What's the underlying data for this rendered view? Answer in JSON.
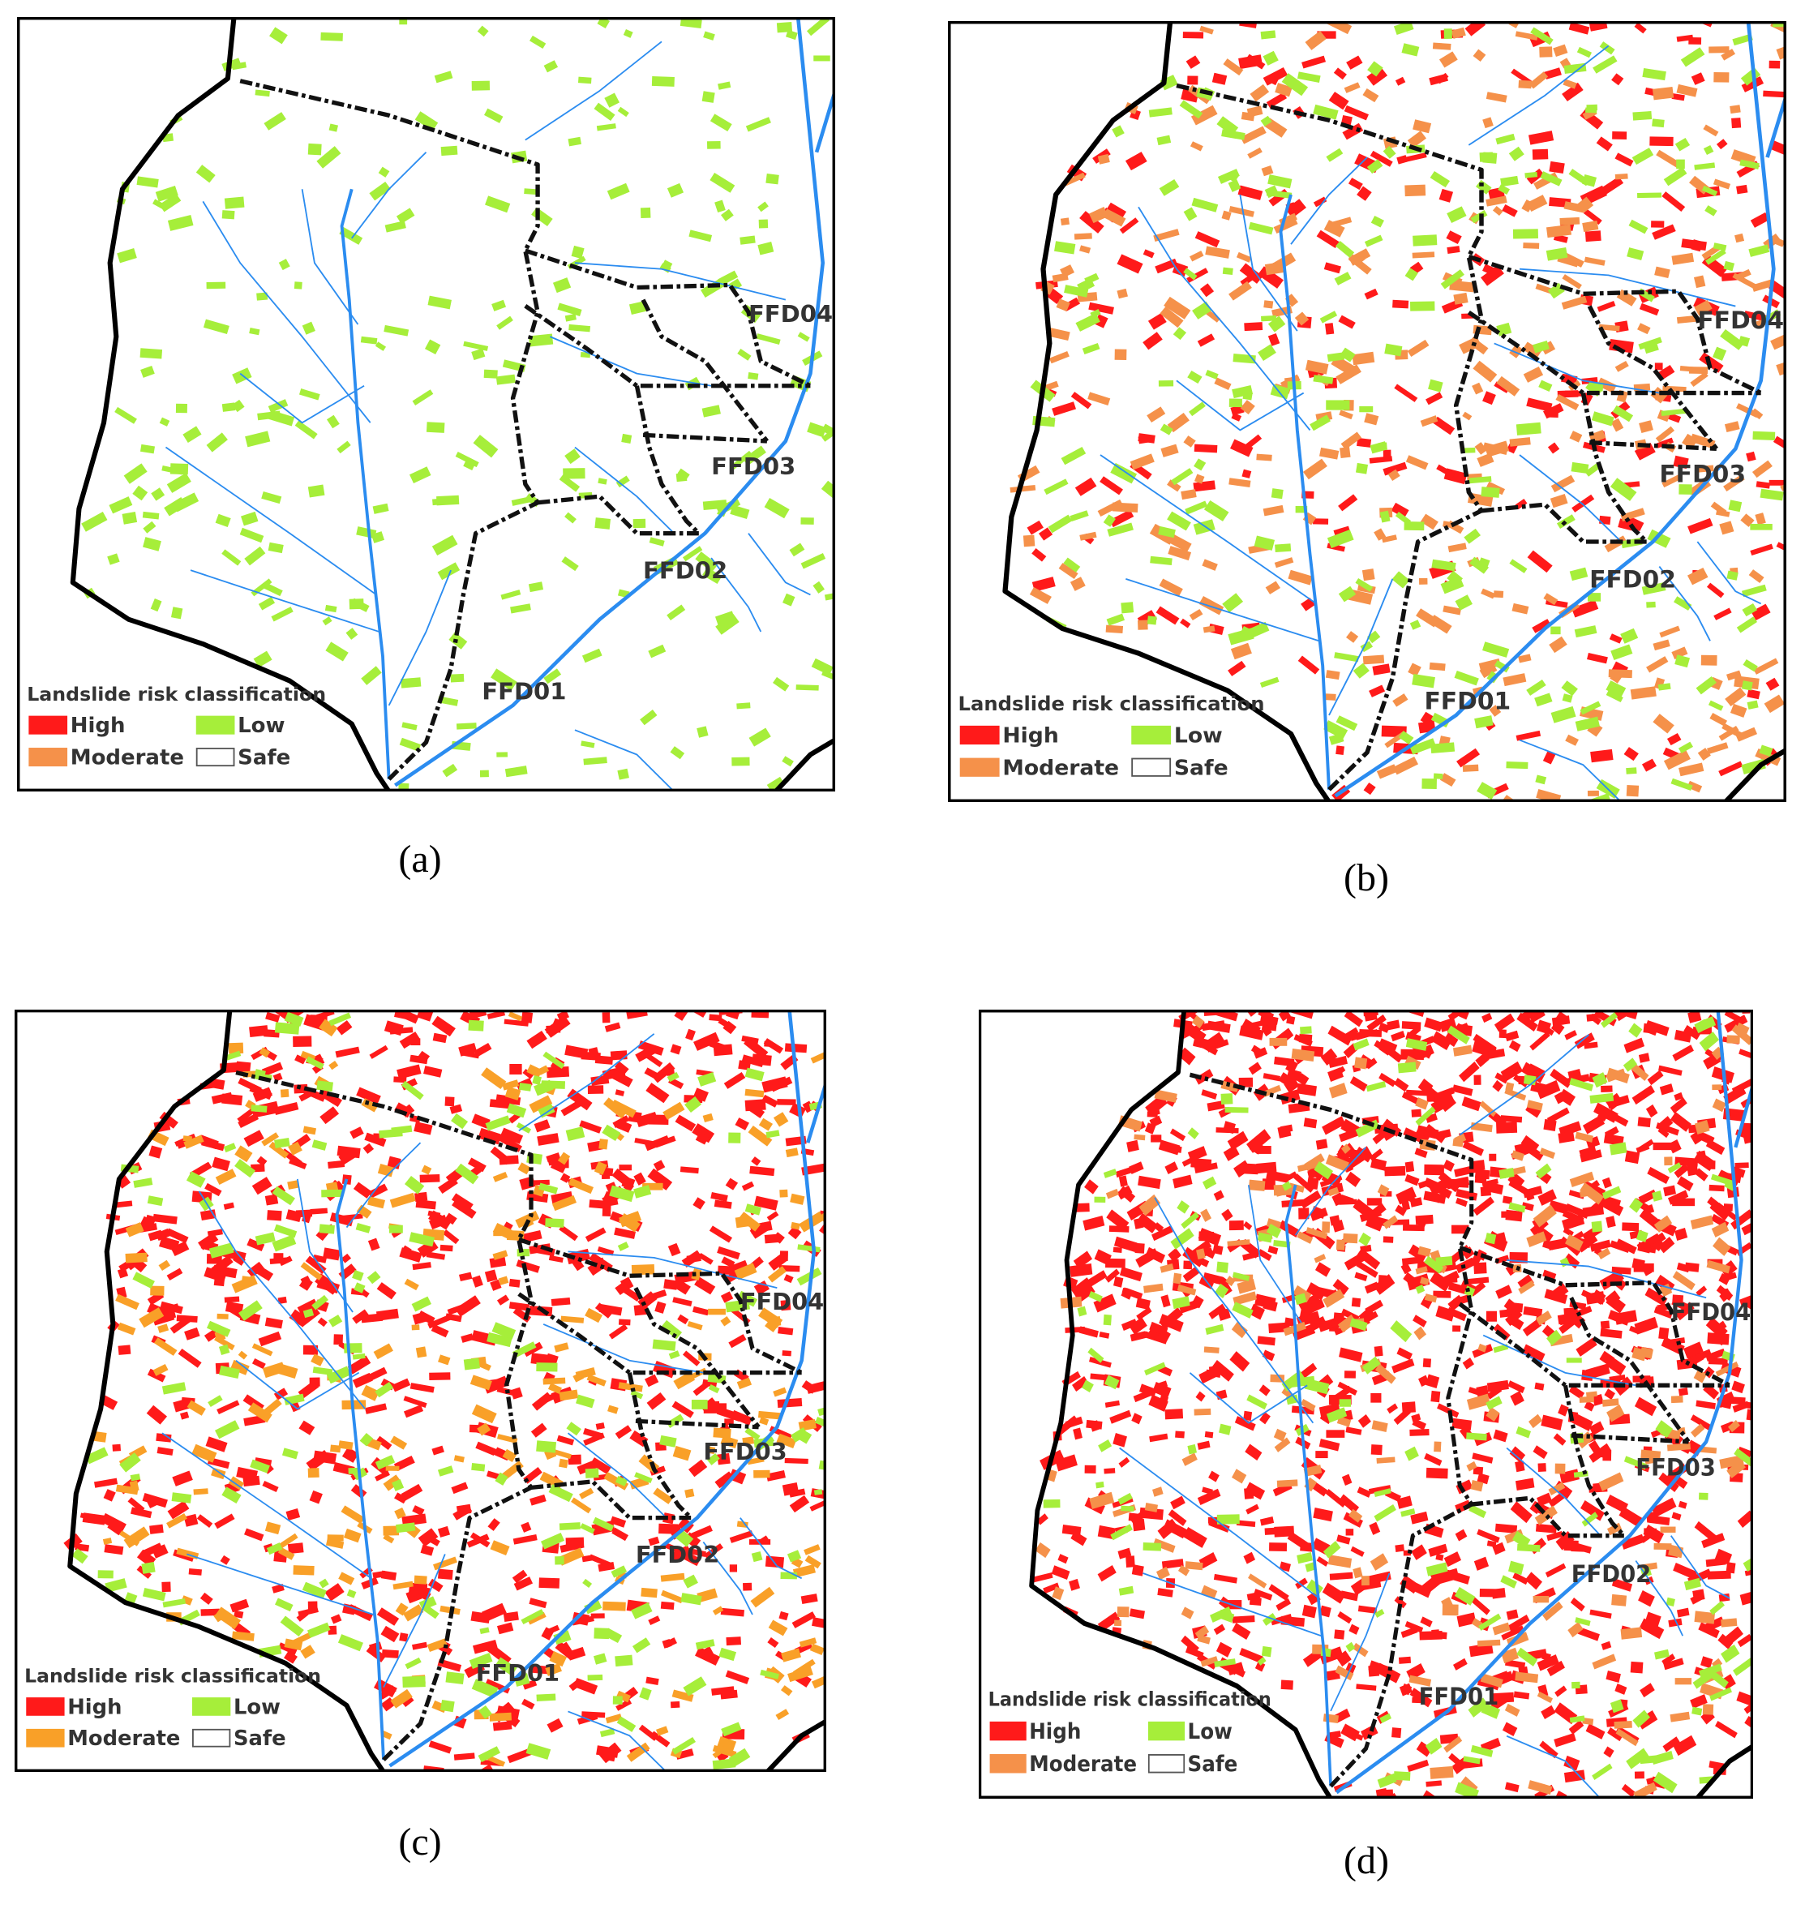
{
  "panels": [
    {
      "caption": "(a)",
      "legend_title": "Landslide risk classification",
      "legend": [
        {
          "label": "High",
          "color": "#ff1a1a"
        },
        {
          "label": "Moderate",
          "color": "#f5914a"
        },
        {
          "label": "Low",
          "color": "#a6ee3a"
        },
        {
          "label": "Safe",
          "color": "#ffffff"
        }
      ],
      "regions": [
        "FFD01",
        "FFD02",
        "FFD03",
        "FFD04"
      ]
    },
    {
      "caption": "(b)",
      "legend_title": "Landslide risk classification",
      "legend": [
        {
          "label": "High",
          "color": "#ff1a1a"
        },
        {
          "label": "Moderate",
          "color": "#f5914a"
        },
        {
          "label": "Low",
          "color": "#a6ee3a"
        },
        {
          "label": "Safe",
          "color": "#ffffff"
        }
      ],
      "regions": [
        "FFD01",
        "FFD02",
        "FFD03",
        "FFD04"
      ]
    },
    {
      "caption": "(c)",
      "legend_title": "Landslide risk classification",
      "legend": [
        {
          "label": "High",
          "color": "#ff1a1a"
        },
        {
          "label": "Moderate",
          "color": "#f9a028"
        },
        {
          "label": "Low",
          "color": "#a6ee3a"
        },
        {
          "label": "Safe",
          "color": "#ffffff"
        }
      ],
      "regions": [
        "FFD01",
        "FFD02",
        "FFD03",
        "FFD04"
      ]
    },
    {
      "caption": "(d)",
      "legend_title": "Landslide risk classification",
      "legend": [
        {
          "label": "High",
          "color": "#ff1a1a"
        },
        {
          "label": "Moderate",
          "color": "#f5914a"
        },
        {
          "label": "Low",
          "color": "#a6ee3a"
        },
        {
          "label": "Safe",
          "color": "#ffffff"
        }
      ],
      "regions": [
        "FFD01",
        "FFD02",
        "FFD03",
        "FFD04"
      ]
    }
  ]
}
